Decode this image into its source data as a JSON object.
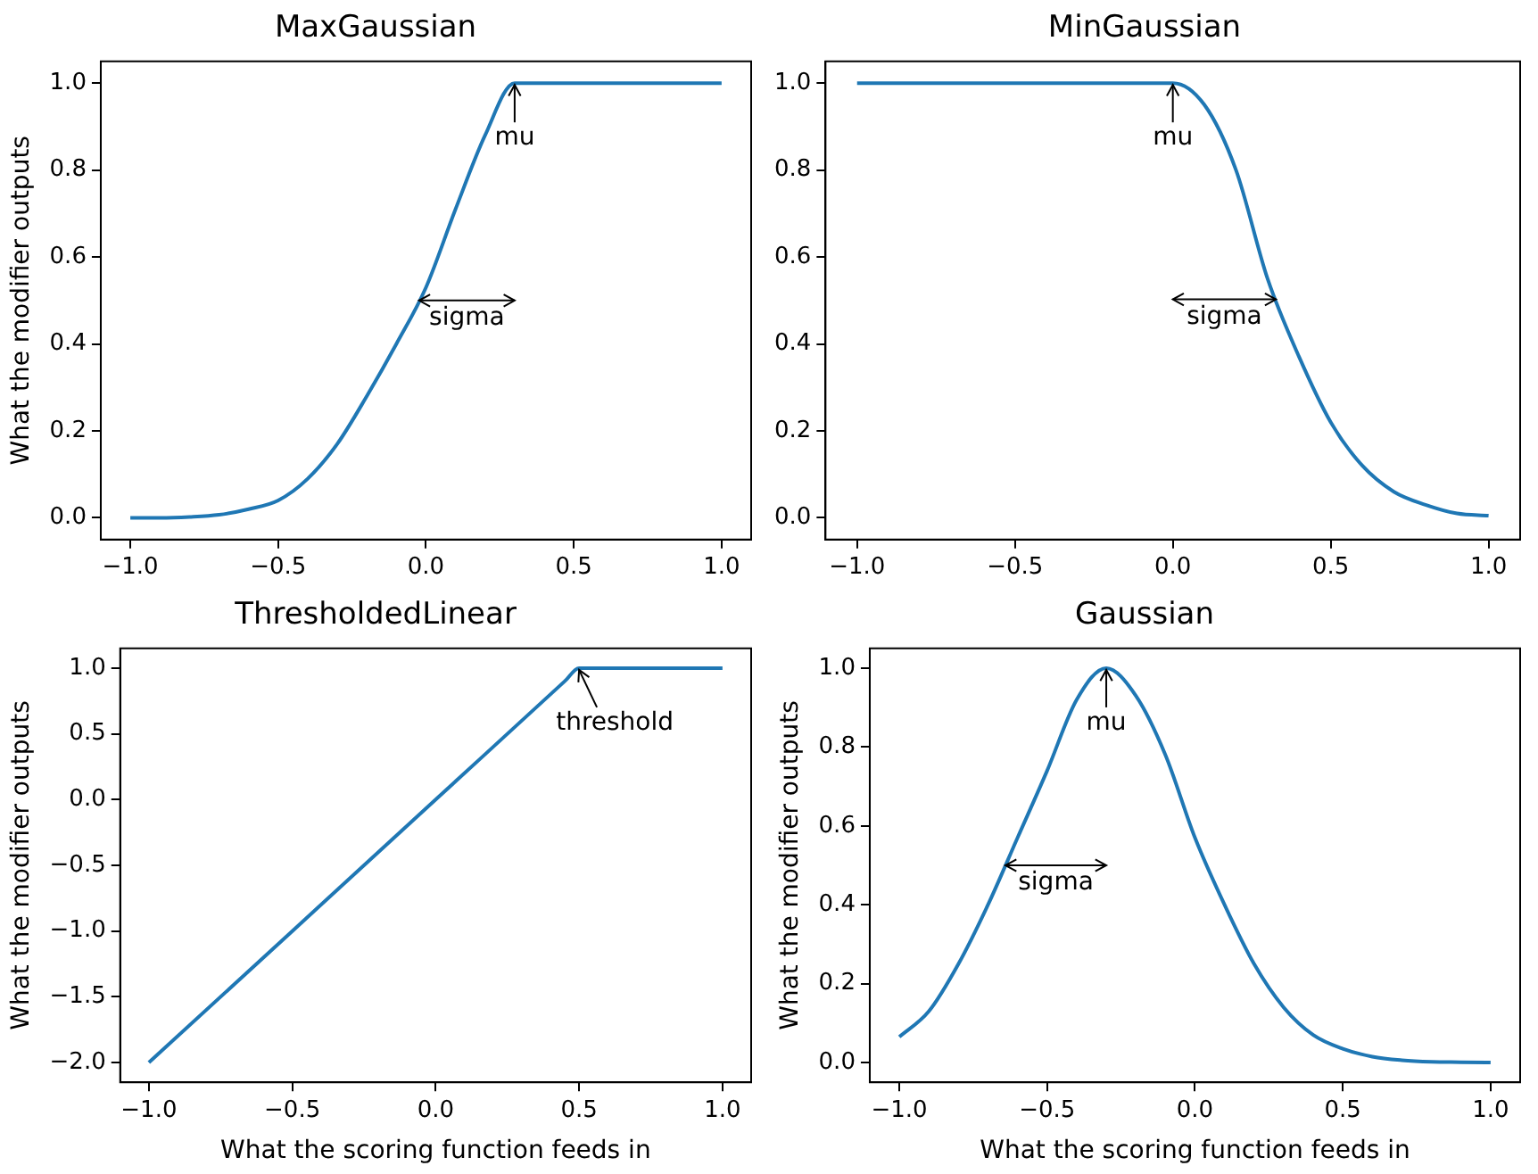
{
  "chart_data": [
    {
      "type": "line",
      "title": "MaxGaussian",
      "ylabel": "What the modifier outputs",
      "x": [
        -1,
        -0.9,
        -0.8,
        -0.7,
        -0.6,
        -0.5,
        -0.4,
        -0.3,
        -0.2,
        -0.1,
        0,
        0.1,
        0.2,
        0.3,
        0.4,
        0.5,
        0.6,
        0.7,
        0.8,
        0.9,
        1
      ],
      "series": [
        {
          "color": "#1f77b4",
          "values": [
            0,
            0,
            0.002,
            0.007,
            0.02,
            0.04,
            0.09,
            0.17,
            0.28,
            0.4,
            0.53,
            0.71,
            0.88,
            1,
            1,
            1,
            1,
            1,
            1,
            1,
            1
          ]
        }
      ],
      "xlim": [
        -1.1,
        1.1
      ],
      "ylim": [
        -0.05,
        1.05
      ],
      "xticks": [
        {
          "value": -1,
          "label": "−1.0"
        },
        {
          "value": -0.5,
          "label": "−0.5"
        },
        {
          "value": 0,
          "label": "0.0"
        },
        {
          "value": 0.5,
          "label": "0.5"
        },
        {
          "value": 1,
          "label": "1.0"
        }
      ],
      "yticks": [
        {
          "value": 0,
          "label": "0.0"
        },
        {
          "value": 0.2,
          "label": "0.2"
        },
        {
          "value": 0.4,
          "label": "0.4"
        },
        {
          "value": 0.6,
          "label": "0.6"
        },
        {
          "value": 0.8,
          "label": "0.8"
        },
        {
          "value": 1,
          "label": "1.0"
        }
      ],
      "annotations": [
        {
          "text": "mu",
          "x": 0.3,
          "y": 1
        },
        "sigma"
      ],
      "grid": false,
      "legend": false
    },
    {
      "type": "line",
      "title": "MinGaussian",
      "x": [
        -1,
        -0.9,
        -0.8,
        -0.7,
        -0.6,
        -0.5,
        -0.4,
        -0.3,
        -0.2,
        -0.1,
        0,
        0.1,
        0.2,
        0.3,
        0.4,
        0.5,
        0.6,
        0.7,
        0.8,
        0.9,
        1
      ],
      "series": [
        {
          "color": "#1f77b4",
          "values": [
            1,
            1,
            1,
            1,
            1,
            1,
            1,
            1,
            1,
            1,
            1,
            0.95,
            0.8,
            0.55,
            0.37,
            0.22,
            0.12,
            0.06,
            0.03,
            0.01,
            0.005
          ]
        }
      ],
      "xlim": [
        -1.1,
        1.1
      ],
      "ylim": [
        -0.05,
        1.05
      ],
      "xticks": [
        {
          "value": -1,
          "label": "−1.0"
        },
        {
          "value": -0.5,
          "label": "−0.5"
        },
        {
          "value": 0,
          "label": "0.0"
        },
        {
          "value": 0.5,
          "label": "0.5"
        },
        {
          "value": 1,
          "label": "1.0"
        }
      ],
      "yticks": [
        {
          "value": 0,
          "label": "0.0"
        },
        {
          "value": 0.2,
          "label": "0.2"
        },
        {
          "value": 0.4,
          "label": "0.4"
        },
        {
          "value": 0.6,
          "label": "0.6"
        },
        {
          "value": 0.8,
          "label": "0.8"
        },
        {
          "value": 1,
          "label": "1.0"
        }
      ],
      "annotations": [
        {
          "text": "mu",
          "x": 0,
          "y": 1
        },
        "sigma"
      ],
      "grid": false,
      "legend": false
    },
    {
      "type": "line",
      "title": "ThresholdedLinear",
      "xlabel": "What the scoring function feeds in",
      "ylabel": "What the modifier outputs",
      "x": [
        -1,
        0,
        0.45,
        0.5,
        1
      ],
      "series": [
        {
          "color": "#1f77b4",
          "values": [
            -2,
            0,
            0.9,
            1,
            1
          ]
        }
      ],
      "xlim": [
        -1.1,
        1.1
      ],
      "ylim": [
        -2.15,
        1.15
      ],
      "xticks": [
        {
          "value": -1,
          "label": "−1.0"
        },
        {
          "value": -0.5,
          "label": "−0.5"
        },
        {
          "value": 0,
          "label": "0.0"
        },
        {
          "value": 0.5,
          "label": "0.5"
        },
        {
          "value": 1,
          "label": "1.0"
        }
      ],
      "yticks": [
        {
          "value": -2,
          "label": "−2.0"
        },
        {
          "value": -1.5,
          "label": "−1.5"
        },
        {
          "value": -1,
          "label": "−1.0"
        },
        {
          "value": -0.5,
          "label": "−0.5"
        },
        {
          "value": 0,
          "label": "0.0"
        },
        {
          "value": 0.5,
          "label": "0.5"
        },
        {
          "value": 1,
          "label": "1.0"
        }
      ],
      "annotations": [
        {
          "text": "threshold",
          "x": 0.5,
          "y": 1
        }
      ],
      "grid": false,
      "legend": false
    },
    {
      "type": "line",
      "title": "Gaussian",
      "xlabel": "What the scoring function feeds in",
      "ylabel": "What the modifier outputs",
      "x": [
        -1,
        -0.9,
        -0.8,
        -0.7,
        -0.6,
        -0.5,
        -0.4,
        -0.3,
        -0.2,
        -0.1,
        0,
        0.1,
        0.2,
        0.3,
        0.4,
        0.5,
        0.6,
        0.7,
        0.8,
        0.9,
        1
      ],
      "series": [
        {
          "color": "#1f77b4",
          "values": [
            0.065,
            0.13,
            0.25,
            0.4,
            0.57,
            0.74,
            0.92,
            1,
            0.93,
            0.78,
            0.57,
            0.4,
            0.25,
            0.14,
            0.07,
            0.035,
            0.015,
            0.006,
            0.002,
            0.001,
            0
          ]
        }
      ],
      "xlim": [
        -1.1,
        1.1
      ],
      "ylim": [
        -0.05,
        1.05
      ],
      "xticks": [
        {
          "value": -1,
          "label": "−1.0"
        },
        {
          "value": -0.5,
          "label": "−0.5"
        },
        {
          "value": 0,
          "label": "0.0"
        },
        {
          "value": 0.5,
          "label": "0.5"
        },
        {
          "value": 1,
          "label": "1.0"
        }
      ],
      "yticks": [
        {
          "value": 0,
          "label": "0.0"
        },
        {
          "value": 0.2,
          "label": "0.2"
        },
        {
          "value": 0.4,
          "label": "0.4"
        },
        {
          "value": 0.6,
          "label": "0.6"
        },
        {
          "value": 0.8,
          "label": "0.8"
        },
        {
          "value": 1,
          "label": "1.0"
        }
      ],
      "annotations": [
        {
          "text": "mu",
          "x": -0.3,
          "y": 1
        },
        "sigma"
      ],
      "grid": false,
      "legend": false
    }
  ]
}
